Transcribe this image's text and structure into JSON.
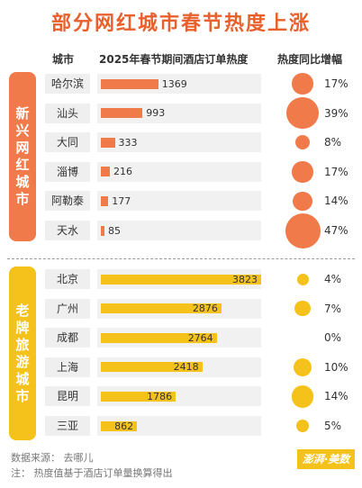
{
  "title": "部分网红城市春节热度上涨",
  "headers": {
    "city": "城市",
    "heat": "2025年春节期间酒店订单热度",
    "growth": "热度同比增幅"
  },
  "groups": {
    "new": {
      "label": "新兴网红城市",
      "color": "#f07a4a"
    },
    "old": {
      "label": "老牌旅游城市",
      "color": "#f5c21b"
    }
  },
  "chart_data": {
    "type": "bar",
    "categories": [
      "哈尔滨",
      "汕头",
      "大同",
      "淄博",
      "阿勒泰",
      "天水",
      "北京",
      "广州",
      "成都",
      "上海",
      "昆明",
      "三亚"
    ],
    "group": [
      "new",
      "new",
      "new",
      "new",
      "new",
      "new",
      "old",
      "old",
      "old",
      "old",
      "old",
      "old"
    ],
    "values": [
      1369,
      993,
      333,
      216,
      177,
      85,
      3823,
      2876,
      2764,
      2418,
      1786,
      862
    ],
    "value_labels": [
      "1369",
      "993",
      "333",
      "216",
      "177",
      "85",
      "3823",
      "2876",
      "2764",
      "2418",
      "1786",
      "862"
    ],
    "growth": [
      17,
      39,
      8,
      17,
      14,
      47,
      4,
      7,
      0,
      10,
      14,
      5
    ],
    "growth_labels": [
      "17%",
      "39%",
      "8%",
      "17%",
      "14%",
      "47%",
      "4%",
      "7%",
      "0%",
      "10%",
      "14%",
      "5%"
    ],
    "colors": {
      "new": "#f07a4a",
      "old": "#f5c21b"
    },
    "xlim": [
      0,
      3823
    ],
    "grid": false
  },
  "footer": {
    "source": "数据来源：  去哪儿",
    "note": "注：   热度值基于酒店订单量换算得出",
    "logo": "澎湃·美数课"
  }
}
